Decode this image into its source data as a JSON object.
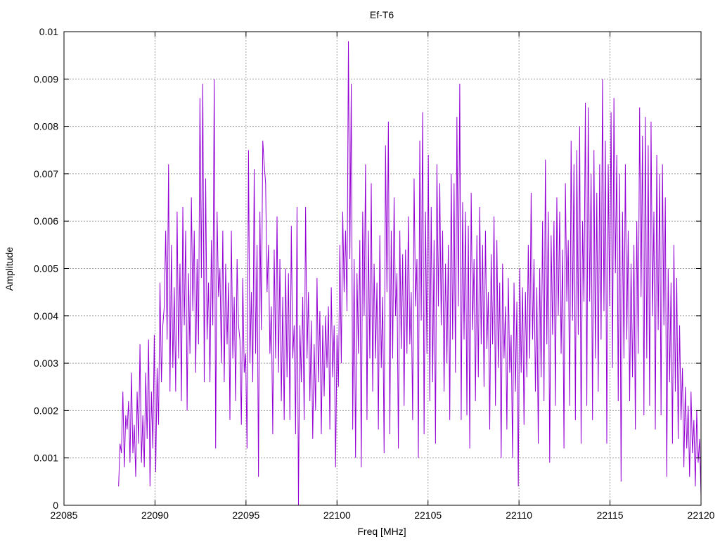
{
  "chart_data": {
    "type": "line",
    "title": "Ef-T6",
    "xlabel": "Freq [MHz]",
    "ylabel": "Amplitude",
    "xlim": [
      22085,
      22120
    ],
    "ylim": [
      0,
      0.01
    ],
    "x_ticks": [
      "22085",
      "22090",
      "22095",
      "22100",
      "22105",
      "22110",
      "22115",
      "22120"
    ],
    "y_ticks": [
      "0",
      "0.001",
      "0.002",
      "0.003",
      "0.004",
      "0.005",
      "0.006",
      "0.007",
      "0.008",
      "0.009",
      "0.01"
    ],
    "grid": true,
    "legend": "none",
    "series": [
      {
        "color": "#9400d3",
        "x_start": 22088,
        "x_end": 22120,
        "values": [
          0.0004,
          0.0013,
          0.0011,
          0.0024,
          0.0008,
          0.0019,
          0.0016,
          0.0022,
          0.0009,
          0.0028,
          0.0011,
          0.0017,
          0.0006,
          0.0024,
          0.0013,
          0.0034,
          0.0009,
          0.0019,
          0.0008,
          0.0028,
          0.0014,
          0.0035,
          0.0004,
          0.0024,
          0.0012,
          0.0036,
          0.0007,
          0.0029,
          0.0017,
          0.0047,
          0.0026,
          0.0038,
          0.0042,
          0.0058,
          0.0035,
          0.0072,
          0.0024,
          0.0055,
          0.0029,
          0.0046,
          0.0024,
          0.0062,
          0.0031,
          0.0051,
          0.0022,
          0.0063,
          0.0038,
          0.0058,
          0.002,
          0.0049,
          0.0032,
          0.0065,
          0.0041,
          0.0058,
          0.0028,
          0.0052,
          0.0034,
          0.0086,
          0.0048,
          0.0089,
          0.0026,
          0.0069,
          0.0035,
          0.0047,
          0.0026,
          0.0056,
          0.0038,
          0.009,
          0.0012,
          0.0062,
          0.0044,
          0.005,
          0.003,
          0.0058,
          0.0026,
          0.0051,
          0.0034,
          0.0047,
          0.0018,
          0.0058,
          0.0031,
          0.0044,
          0.0022,
          0.0052,
          0.0038,
          0.0035,
          0.0017,
          0.0048,
          0.0028,
          0.0032,
          0.0012,
          0.0075,
          0.003,
          0.0045,
          0.0026,
          0.0071,
          0.0032,
          0.0055,
          0.0006,
          0.0062,
          0.0037,
          0.0077,
          0.0072,
          0.0068,
          0.0045,
          0.0055,
          0.0032,
          0.0042,
          0.0015,
          0.0054,
          0.0031,
          0.0061,
          0.0028,
          0.0052,
          0.0022,
          0.0044,
          0.0018,
          0.005,
          0.0027,
          0.0049,
          0.0018,
          0.0059,
          0.0031,
          0.0038,
          0.0015,
          0.0063,
          0.0,
          0.0038,
          0.0026,
          0.0044,
          0.0018,
          0.0063,
          0.0031,
          0.0045,
          0.0022,
          0.0039,
          0.0014,
          0.0034,
          0.002,
          0.0048,
          0.0026,
          0.0041,
          0.0015,
          0.0038,
          0.0023,
          0.004,
          0.0029,
          0.0042,
          0.0016,
          0.0046,
          0.0027,
          0.0038,
          0.0008,
          0.0036,
          0.0025,
          0.0055,
          0.003,
          0.0062,
          0.0045,
          0.0058,
          0.0041,
          0.0098,
          0.0052,
          0.0089,
          0.0016,
          0.0052,
          0.001,
          0.0049,
          0.0032,
          0.0056,
          0.0008,
          0.0062,
          0.004,
          0.0072,
          0.0018,
          0.0058,
          0.0031,
          0.0068,
          0.0024,
          0.0051,
          0.0031,
          0.0047,
          0.0016,
          0.0057,
          0.0029,
          0.0044,
          0.0011,
          0.0076,
          0.0045,
          0.0081,
          0.0015,
          0.0058,
          0.0031,
          0.0065,
          0.004,
          0.0049,
          0.0012,
          0.0058,
          0.0033,
          0.0053,
          0.0021,
          0.0054,
          0.0032,
          0.0061,
          0.0034,
          0.0045,
          0.0018,
          0.0069,
          0.0042,
          0.0052,
          0.001,
          0.0077,
          0.0039,
          0.0083,
          0.0015,
          0.0062,
          0.0032,
          0.0074,
          0.0022,
          0.0063,
          0.0026,
          0.0056,
          0.0013,
          0.0072,
          0.0042,
          0.0068,
          0.0038,
          0.0058,
          0.0024,
          0.0051,
          0.003,
          0.0055,
          0.0018,
          0.007,
          0.0035,
          0.0068,
          0.0028,
          0.0082,
          0.0042,
          0.0089,
          0.0018,
          0.0064,
          0.0035,
          0.0062,
          0.0019,
          0.0059,
          0.0012,
          0.0066,
          0.0037,
          0.0052,
          0.0022,
          0.0057,
          0.0027,
          0.0063,
          0.0034,
          0.0055,
          0.0025,
          0.0058,
          0.0033,
          0.0045,
          0.0016,
          0.0053,
          0.0034,
          0.0061,
          0.0021,
          0.0056,
          0.0029,
          0.0047,
          0.001,
          0.0051,
          0.0031,
          0.0042,
          0.0016,
          0.0048,
          0.0028,
          0.0036,
          0.001,
          0.0047,
          0.0024,
          0.0043,
          0.0004,
          0.005,
          0.0028,
          0.0046,
          0.0017,
          0.0045,
          0.0027,
          0.0055,
          0.0031,
          0.0066,
          0.0035,
          0.0052,
          0.0024,
          0.0046,
          0.0013,
          0.005,
          0.0027,
          0.006,
          0.0022,
          0.0073,
          0.0034,
          0.0062,
          0.0009,
          0.0057,
          0.0036,
          0.006,
          0.0021,
          0.0065,
          0.004,
          0.0062,
          0.0032,
          0.0054,
          0.0012,
          0.0068,
          0.0043,
          0.0056,
          0.0021,
          0.0077,
          0.0039,
          0.0072,
          0.0018,
          0.0075,
          0.0036,
          0.008,
          0.0013,
          0.006,
          0.0043,
          0.0085,
          0.0021,
          0.0084,
          0.0043,
          0.007,
          0.0018,
          0.0075,
          0.0031,
          0.0066,
          0.0024,
          0.0072,
          0.0035,
          0.009,
          0.0041,
          0.0077,
          0.0013,
          0.0072,
          0.0042,
          0.0083,
          0.0029,
          0.0086,
          0.0049,
          0.0074,
          0.0022,
          0.007,
          0.0005,
          0.0062,
          0.0031,
          0.0072,
          0.0035,
          0.0058,
          0.0022,
          0.0051,
          0.0027,
          0.0055,
          0.0016,
          0.006,
          0.0032,
          0.0084,
          0.0044,
          0.0078,
          0.0019,
          0.0082,
          0.0031,
          0.0076,
          0.0021,
          0.0081,
          0.004,
          0.0062,
          0.0016,
          0.0074,
          0.0037,
          0.007,
          0.0019,
          0.0072,
          0.0038,
          0.0065,
          0.0006,
          0.005,
          0.0026,
          0.0047,
          0.0013,
          0.0055,
          0.0024,
          0.0048,
          0.0014,
          0.0038,
          0.0018,
          0.0029,
          0.0008,
          0.0025,
          0.0012,
          0.0021,
          0.0006,
          0.0024,
          0.0011,
          0.0018,
          0.0004,
          0.002,
          0.0009,
          0.0014,
          0.0002
        ]
      }
    ]
  }
}
